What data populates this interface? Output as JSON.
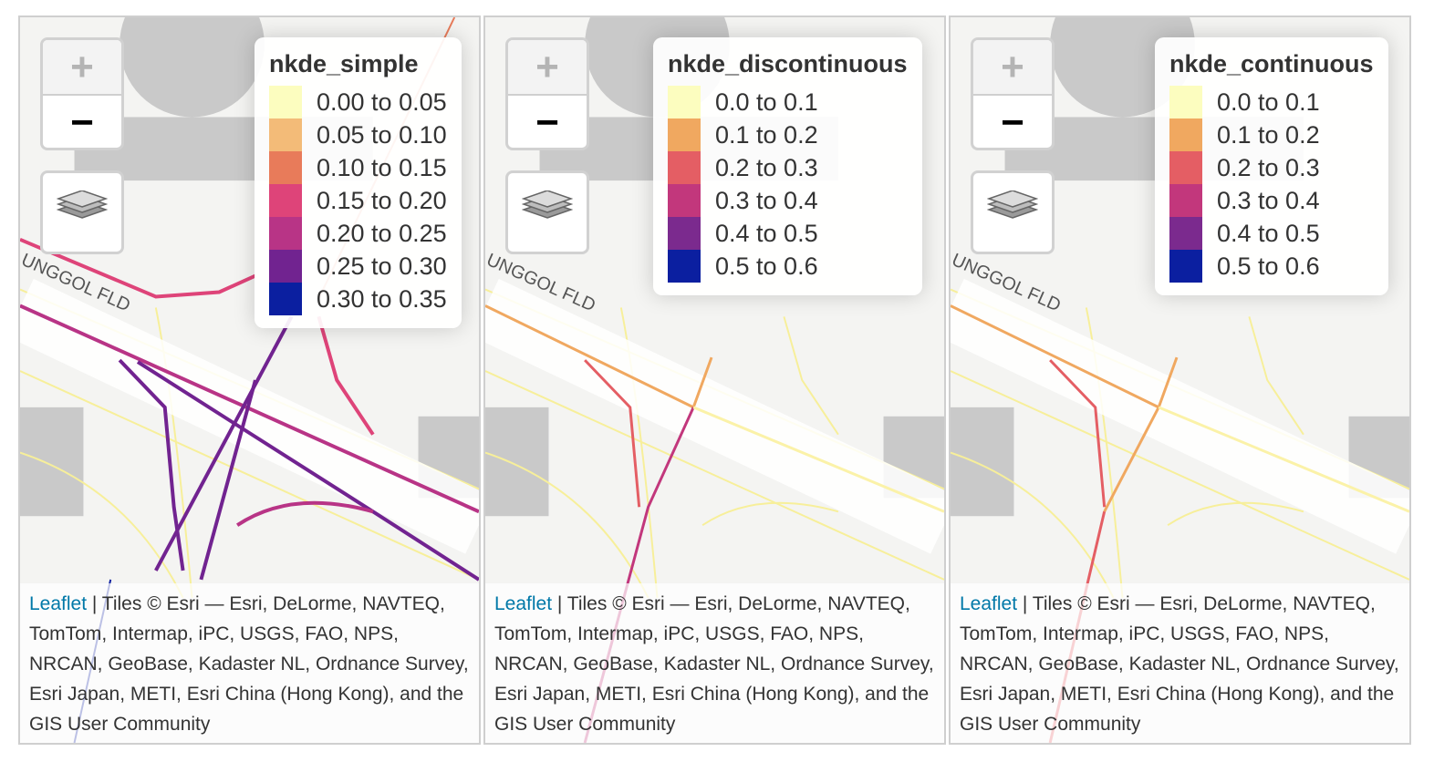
{
  "maps": [
    {
      "legend": {
        "title": "nkde_simple",
        "items": [
          {
            "label": "0.00 to 0.05",
            "color": "#fcfdbf"
          },
          {
            "label": "0.05 to 0.10",
            "color": "#f3bb78"
          },
          {
            "label": "0.10 to 0.15",
            "color": "#e87b5a"
          },
          {
            "label": "0.15 to 0.20",
            "color": "#de4479"
          },
          {
            "label": "0.20 to 0.25",
            "color": "#b83486"
          },
          {
            "label": "0.25 to 0.30",
            "color": "#712390"
          },
          {
            "label": "0.30 to 0.35",
            "color": "#0b1fa0"
          }
        ]
      },
      "attribution": {
        "link": "Leaflet",
        "text": " | Tiles © Esri — Esri, DeLorme, NAVTEQ, TomTom, Intermap, iPC, USGS, FAO, NPS, NRCAN, GeoBase, Kadaster NL, Ordnance Survey, Esri Japan, METI, Esri China (Hong Kong), and the GIS User Community"
      },
      "street_label": "UNGGOL FLD",
      "controls": {
        "zoom_in": "+",
        "zoom_out": "−"
      }
    },
    {
      "legend": {
        "title": "nkde_discontinuous",
        "items": [
          {
            "label": "0.0 to 0.1",
            "color": "#fcfdbf"
          },
          {
            "label": "0.1 to 0.2",
            "color": "#f0a860"
          },
          {
            "label": "0.2 to 0.3",
            "color": "#e45e64"
          },
          {
            "label": "0.3 to 0.4",
            "color": "#c2377c"
          },
          {
            "label": "0.4 to 0.5",
            "color": "#7b2a8e"
          },
          {
            "label": "0.5 to 0.6",
            "color": "#0b1fa0"
          }
        ]
      },
      "attribution": {
        "link": "Leaflet",
        "text": " | Tiles © Esri — Esri, DeLorme, NAVTEQ, TomTom, Intermap, iPC, USGS, FAO, NPS, NRCAN, GeoBase, Kadaster NL, Ordnance Survey, Esri Japan, METI, Esri China (Hong Kong), and the GIS User Community"
      },
      "street_label": "UNGGOL FLD",
      "controls": {
        "zoom_in": "+",
        "zoom_out": "−"
      }
    },
    {
      "legend": {
        "title": "nkde_continuous",
        "items": [
          {
            "label": "0.0 to 0.1",
            "color": "#fcfdbf"
          },
          {
            "label": "0.1 to 0.2",
            "color": "#f0a860"
          },
          {
            "label": "0.2 to 0.3",
            "color": "#e45e64"
          },
          {
            "label": "0.3 to 0.4",
            "color": "#c2377c"
          },
          {
            "label": "0.4 to 0.5",
            "color": "#7b2a8e"
          },
          {
            "label": "0.5 to 0.6",
            "color": "#0b1fa0"
          }
        ]
      },
      "attribution": {
        "link": "Leaflet",
        "text": " | Tiles © Esri — Esri, DeLorme, NAVTEQ, TomTom, Intermap, iPC, USGS, FAO, NPS, NRCAN, GeoBase, Kadaster NL, Ordnance Survey, Esri Japan, METI, Esri China (Hong Kong), and the GIS User Community"
      },
      "street_label": "UNGGOL FLD",
      "controls": {
        "zoom_in": "+",
        "zoom_out": "−"
      }
    }
  ],
  "colors": {
    "road_yellow": "#f7ef9a",
    "building_gray": "#c9c9c9",
    "tile_bg": "#f4f4f2"
  }
}
